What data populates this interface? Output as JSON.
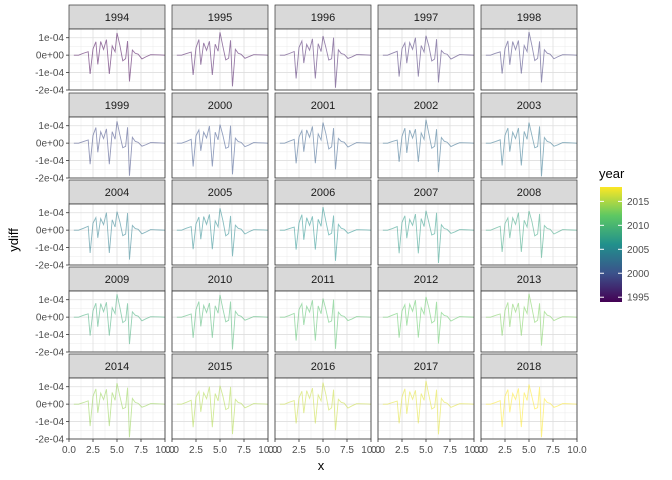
{
  "chart_data": {
    "type": "line",
    "facet_by": "year",
    "panels": [
      "1994",
      "1995",
      "1996",
      "1997",
      "1998",
      "1999",
      "2000",
      "2001",
      "2002",
      "2003",
      "2004",
      "2005",
      "2006",
      "2007",
      "2008",
      "2009",
      "2010",
      "2011",
      "2012",
      "2013",
      "2014",
      "2015",
      "2016",
      "2017",
      "2018"
    ],
    "xlabel": "x",
    "ylabel": "ydiff",
    "xlim": [
      0,
      10
    ],
    "ylim": [
      -0.0002,
      0.00015
    ],
    "x_ticks": [
      0,
      2.5,
      5,
      7.5,
      10
    ],
    "x_tick_labels": [
      "0.0",
      "2.5",
      "5.0",
      "7.5",
      "10.0"
    ],
    "y_ticks": [
      -0.0002,
      -0.0001,
      0,
      0.0001
    ],
    "y_tick_labels": [
      "-2e-04",
      "-1e-04",
      "0e+00",
      "1e-04"
    ],
    "grid": true,
    "legend": {
      "title": "year",
      "placement": "right",
      "type": "colorbar",
      "range": [
        1994,
        2018
      ],
      "tick_values": [
        1995,
        2000,
        2005,
        2010,
        2015
      ],
      "tick_labels": [
        "1995",
        "2000",
        "2005",
        "2010",
        "2015"
      ],
      "colormap": [
        "#440154",
        "#3B528B",
        "#21908C",
        "#5DC863",
        "#FDE725"
      ]
    },
    "series_template": {
      "x": [
        0.5,
        1.0,
        1.5,
        2.0,
        2.2,
        2.5,
        2.8,
        3.0,
        3.3,
        3.6,
        3.9,
        4.2,
        4.5,
        4.8,
        5.0,
        5.3,
        5.6,
        5.9,
        6.1,
        6.3,
        6.6,
        6.9,
        7.2,
        7.6,
        8.0,
        8.5,
        9.0,
        9.5,
        10.0
      ],
      "y": [
        0.0,
        0.0,
        1e-05,
        2e-05,
        -0.00012,
        4e-05,
        8e-05,
        -5e-05,
        7e-05,
        3e-05,
        9e-05,
        -0.00012,
        6e-05,
        2e-05,
        0.00012,
        5e-05,
        -3e-05,
        -2e-05,
        9e-05,
        -0.00017,
        3e-05,
        1e-05,
        5e-06,
        -2e-05,
        -1e-05,
        3e-06,
        2e-06,
        1e-06,
        0.0
      ]
    }
  }
}
